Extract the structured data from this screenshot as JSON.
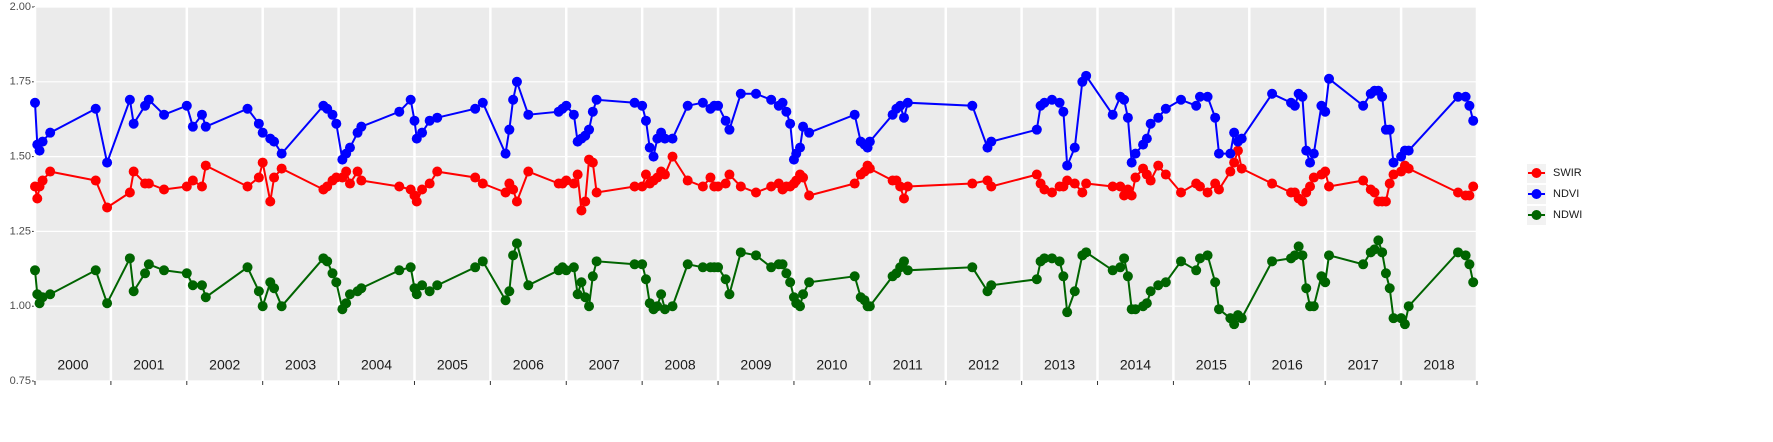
{
  "chart_data": {
    "type": "line",
    "legend": "right",
    "grid": true,
    "xlim": [
      2000,
      2019
    ],
    "xticks": [
      2000,
      2001,
      2002,
      2003,
      2004,
      2005,
      2006,
      2007,
      2008,
      2009,
      2010,
      2011,
      2012,
      2013,
      2014,
      2015,
      2016,
      2017,
      2018,
      2019
    ],
    "year_labels": [
      {
        "value": 2000.5,
        "label": "2000"
      },
      {
        "value": 2001.5,
        "label": "2001"
      },
      {
        "value": 2002.5,
        "label": "2002"
      },
      {
        "value": 2003.5,
        "label": "2003"
      },
      {
        "value": 2004.5,
        "label": "2004"
      },
      {
        "value": 2005.5,
        "label": "2005"
      },
      {
        "value": 2006.5,
        "label": "2006"
      },
      {
        "value": 2007.5,
        "label": "2007"
      },
      {
        "value": 2008.5,
        "label": "2008"
      },
      {
        "value": 2009.5,
        "label": "2009"
      },
      {
        "value": 2010.5,
        "label": "2010"
      },
      {
        "value": 2011.5,
        "label": "2011"
      },
      {
        "value": 2012.5,
        "label": "2012"
      },
      {
        "value": 2013.5,
        "label": "2013"
      },
      {
        "value": 2014.5,
        "label": "2014"
      },
      {
        "value": 2015.5,
        "label": "2015"
      },
      {
        "value": 2016.5,
        "label": "2016"
      },
      {
        "value": 2017.5,
        "label": "2017"
      },
      {
        "value": 2018.5,
        "label": "2018"
      }
    ],
    "ylim": [
      0.75,
      2.0
    ],
    "yticks": [
      0.75,
      {
        "value": 1.0,
        "label": "1.00"
      },
      1.25,
      {
        "value": 1.5,
        "label": "1.50"
      },
      1.75,
      {
        "value": 2.0,
        "label": "2.00"
      }
    ],
    "x": [
      2000.0,
      2000.03,
      2000.06,
      2000.1,
      2000.2,
      2000.8,
      2000.95,
      2001.25,
      2001.3,
      2001.45,
      2001.5,
      2001.7,
      2002.0,
      2002.08,
      2002.2,
      2002.25,
      2002.8,
      2002.95,
      2003.0,
      2003.1,
      2003.15,
      2003.25,
      2003.8,
      2003.85,
      2003.92,
      2003.97,
      2004.05,
      2004.1,
      2004.15,
      2004.25,
      2004.3,
      2004.8,
      2004.95,
      2005.0,
      2005.03,
      2005.1,
      2005.2,
      2005.3,
      2005.8,
      2005.9,
      2006.2,
      2006.25,
      2006.3,
      2006.35,
      2006.5,
      2006.9,
      2006.95,
      2007.0,
      2007.1,
      2007.15,
      2007.2,
      2007.25,
      2007.3,
      2007.35,
      2007.4,
      2007.9,
      2008.0,
      2008.05,
      2008.1,
      2008.15,
      2008.2,
      2008.25,
      2008.3,
      2008.4,
      2008.6,
      2008.8,
      2008.9,
      2008.95,
      2009.0,
      2009.1,
      2009.15,
      2009.3,
      2009.5,
      2009.7,
      2009.8,
      2009.85,
      2009.9,
      2009.95,
      2010.0,
      2010.03,
      2010.08,
      2010.12,
      2010.2,
      2010.8,
      2010.88,
      2010.93,
      2010.97,
      2011.0,
      2011.3,
      2011.35,
      2011.4,
      2011.45,
      2011.5,
      2012.35,
      2012.55,
      2012.6,
      2013.2,
      2013.25,
      2013.3,
      2013.4,
      2013.5,
      2013.55,
      2013.6,
      2013.7,
      2013.8,
      2013.85,
      2014.2,
      2014.3,
      2014.35,
      2014.4,
      2014.45,
      2014.5,
      2014.6,
      2014.65,
      2014.7,
      2014.8,
      2014.9,
      2015.1,
      2015.3,
      2015.35,
      2015.45,
      2015.55,
      2015.6,
      2015.75,
      2015.8,
      2015.85,
      2015.9,
      2016.3,
      2016.55,
      2016.6,
      2016.65,
      2016.7,
      2016.75,
      2016.8,
      2016.85,
      2016.95,
      2017.0,
      2017.05,
      2017.5,
      2017.6,
      2017.65,
      2017.7,
      2017.75,
      2017.8,
      2017.85,
      2017.9,
      2018.0,
      2018.05,
      2018.1,
      2018.75,
      2018.85,
      2018.9,
      2018.95
    ],
    "series": [
      {
        "name": "SWIR",
        "color": "#ff0000",
        "values": [
          1.4,
          1.36,
          1.4,
          1.42,
          1.45,
          1.42,
          1.33,
          1.38,
          1.45,
          1.41,
          1.41,
          1.39,
          1.4,
          1.42,
          1.4,
          1.47,
          1.4,
          1.43,
          1.48,
          1.35,
          1.43,
          1.46,
          1.39,
          1.4,
          1.42,
          1.43,
          1.43,
          1.45,
          1.41,
          1.45,
          1.42,
          1.4,
          1.39,
          1.37,
          1.35,
          1.39,
          1.41,
          1.45,
          1.43,
          1.41,
          1.38,
          1.41,
          1.39,
          1.35,
          1.45,
          1.41,
          1.41,
          1.42,
          1.41,
          1.44,
          1.32,
          1.35,
          1.49,
          1.48,
          1.38,
          1.4,
          1.4,
          1.44,
          1.41,
          1.42,
          1.43,
          1.45,
          1.44,
          1.5,
          1.42,
          1.4,
          1.43,
          1.4,
          1.4,
          1.41,
          1.44,
          1.4,
          1.38,
          1.4,
          1.41,
          1.39,
          1.4,
          1.4,
          1.41,
          1.42,
          1.44,
          1.43,
          1.37,
          1.41,
          1.44,
          1.45,
          1.47,
          1.46,
          1.42,
          1.42,
          1.4,
          1.36,
          1.4,
          1.41,
          1.42,
          1.4,
          1.44,
          1.41,
          1.39,
          1.38,
          1.4,
          1.4,
          1.42,
          1.41,
          1.38,
          1.41,
          1.4,
          1.4,
          1.37,
          1.39,
          1.37,
          1.43,
          1.46,
          1.44,
          1.42,
          1.47,
          1.44,
          1.38,
          1.41,
          1.4,
          1.38,
          1.41,
          1.39,
          1.45,
          1.48,
          1.52,
          1.46,
          1.41,
          1.38,
          1.38,
          1.36,
          1.35,
          1.38,
          1.4,
          1.43,
          1.44,
          1.45,
          1.4,
          1.42,
          1.39,
          1.38,
          1.35,
          1.35,
          1.35,
          1.41,
          1.44,
          1.45,
          1.47,
          1.46,
          1.38,
          1.37,
          1.37,
          1.4
        ]
      },
      {
        "name": "NDVI",
        "color": "#0000ff",
        "values": [
          1.68,
          1.54,
          1.52,
          1.55,
          1.58,
          1.66,
          1.48,
          1.69,
          1.61,
          1.67,
          1.69,
          1.64,
          1.67,
          1.6,
          1.64,
          1.6,
          1.66,
          1.61,
          1.58,
          1.56,
          1.55,
          1.51,
          1.67,
          1.66,
          1.64,
          1.61,
          1.49,
          1.51,
          1.53,
          1.58,
          1.6,
          1.65,
          1.69,
          1.62,
          1.56,
          1.58,
          1.62,
          1.63,
          1.66,
          1.68,
          1.51,
          1.59,
          1.69,
          1.75,
          1.64,
          1.65,
          1.66,
          1.67,
          1.64,
          1.55,
          1.56,
          1.57,
          1.59,
          1.65,
          1.69,
          1.68,
          1.67,
          1.62,
          1.53,
          1.5,
          1.56,
          1.58,
          1.56,
          1.56,
          1.67,
          1.68,
          1.66,
          1.67,
          1.67,
          1.62,
          1.59,
          1.71,
          1.71,
          1.69,
          1.67,
          1.68,
          1.65,
          1.61,
          1.49,
          1.51,
          1.53,
          1.6,
          1.58,
          1.64,
          1.55,
          1.54,
          1.53,
          1.55,
          1.64,
          1.66,
          1.67,
          1.63,
          1.68,
          1.67,
          1.53,
          1.55,
          1.59,
          1.67,
          1.68,
          1.69,
          1.68,
          1.65,
          1.47,
          1.53,
          1.75,
          1.77,
          1.64,
          1.7,
          1.69,
          1.63,
          1.48,
          1.51,
          1.54,
          1.56,
          1.61,
          1.63,
          1.66,
          1.69,
          1.67,
          1.7,
          1.7,
          1.63,
          1.51,
          1.51,
          1.58,
          1.55,
          1.56,
          1.71,
          1.68,
          1.67,
          1.71,
          1.7,
          1.52,
          1.48,
          1.51,
          1.67,
          1.65,
          1.76,
          1.67,
          1.71,
          1.72,
          1.72,
          1.7,
          1.59,
          1.59,
          1.48,
          1.5,
          1.52,
          1.52,
          1.7,
          1.7,
          1.67,
          1.62
        ]
      },
      {
        "name": "NDWI",
        "color": "#006400",
        "values": [
          1.12,
          1.04,
          1.01,
          1.03,
          1.04,
          1.12,
          1.01,
          1.16,
          1.05,
          1.11,
          1.14,
          1.12,
          1.11,
          1.07,
          1.07,
          1.03,
          1.13,
          1.05,
          1.0,
          1.08,
          1.06,
          1.0,
          1.16,
          1.15,
          1.11,
          1.08,
          0.99,
          1.01,
          1.04,
          1.05,
          1.06,
          1.12,
          1.13,
          1.06,
          1.04,
          1.07,
          1.05,
          1.07,
          1.13,
          1.15,
          1.02,
          1.05,
          1.17,
          1.21,
          1.07,
          1.12,
          1.13,
          1.12,
          1.13,
          1.04,
          1.08,
          1.03,
          1.0,
          1.1,
          1.15,
          1.14,
          1.14,
          1.09,
          1.01,
          0.99,
          1.0,
          1.04,
          0.99,
          1.0,
          1.14,
          1.13,
          1.13,
          1.13,
          1.13,
          1.09,
          1.04,
          1.18,
          1.17,
          1.13,
          1.14,
          1.14,
          1.11,
          1.08,
          1.03,
          1.01,
          1.0,
          1.04,
          1.08,
          1.1,
          1.03,
          1.02,
          1.0,
          1.0,
          1.1,
          1.11,
          1.13,
          1.15,
          1.12,
          1.13,
          1.05,
          1.07,
          1.09,
          1.15,
          1.16,
          1.16,
          1.15,
          1.1,
          0.98,
          1.05,
          1.17,
          1.18,
          1.12,
          1.13,
          1.16,
          1.1,
          0.99,
          0.99,
          1.0,
          1.01,
          1.05,
          1.07,
          1.08,
          1.15,
          1.12,
          1.16,
          1.17,
          1.08,
          0.99,
          0.96,
          0.94,
          0.97,
          0.96,
          1.15,
          1.16,
          1.17,
          1.2,
          1.17,
          1.06,
          1.0,
          1.0,
          1.1,
          1.08,
          1.17,
          1.14,
          1.18,
          1.19,
          1.22,
          1.18,
          1.11,
          1.06,
          0.96,
          0.96,
          0.94,
          1.0,
          1.18,
          1.17,
          1.14,
          1.08
        ]
      }
    ]
  }
}
